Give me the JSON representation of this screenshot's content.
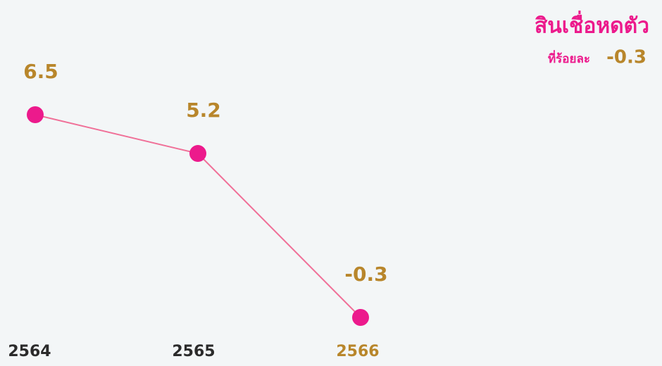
{
  "chart_data": {
    "type": "line",
    "title": "สินเชื่อหดตัว",
    "annotation": {
      "prefix": "ที่ร้อยละ",
      "value": "-0.3"
    },
    "categories": [
      "2564",
      "2565",
      "2566"
    ],
    "category_colors": [
      "#2b2b2b",
      "#2b2b2b",
      "#b8862b"
    ],
    "series": [
      {
        "color": "#f07098",
        "marker_color": "#ec1a8c",
        "label_color": "#b8862b",
        "values": [
          6.5,
          5.2,
          -0.3
        ]
      }
    ]
  }
}
